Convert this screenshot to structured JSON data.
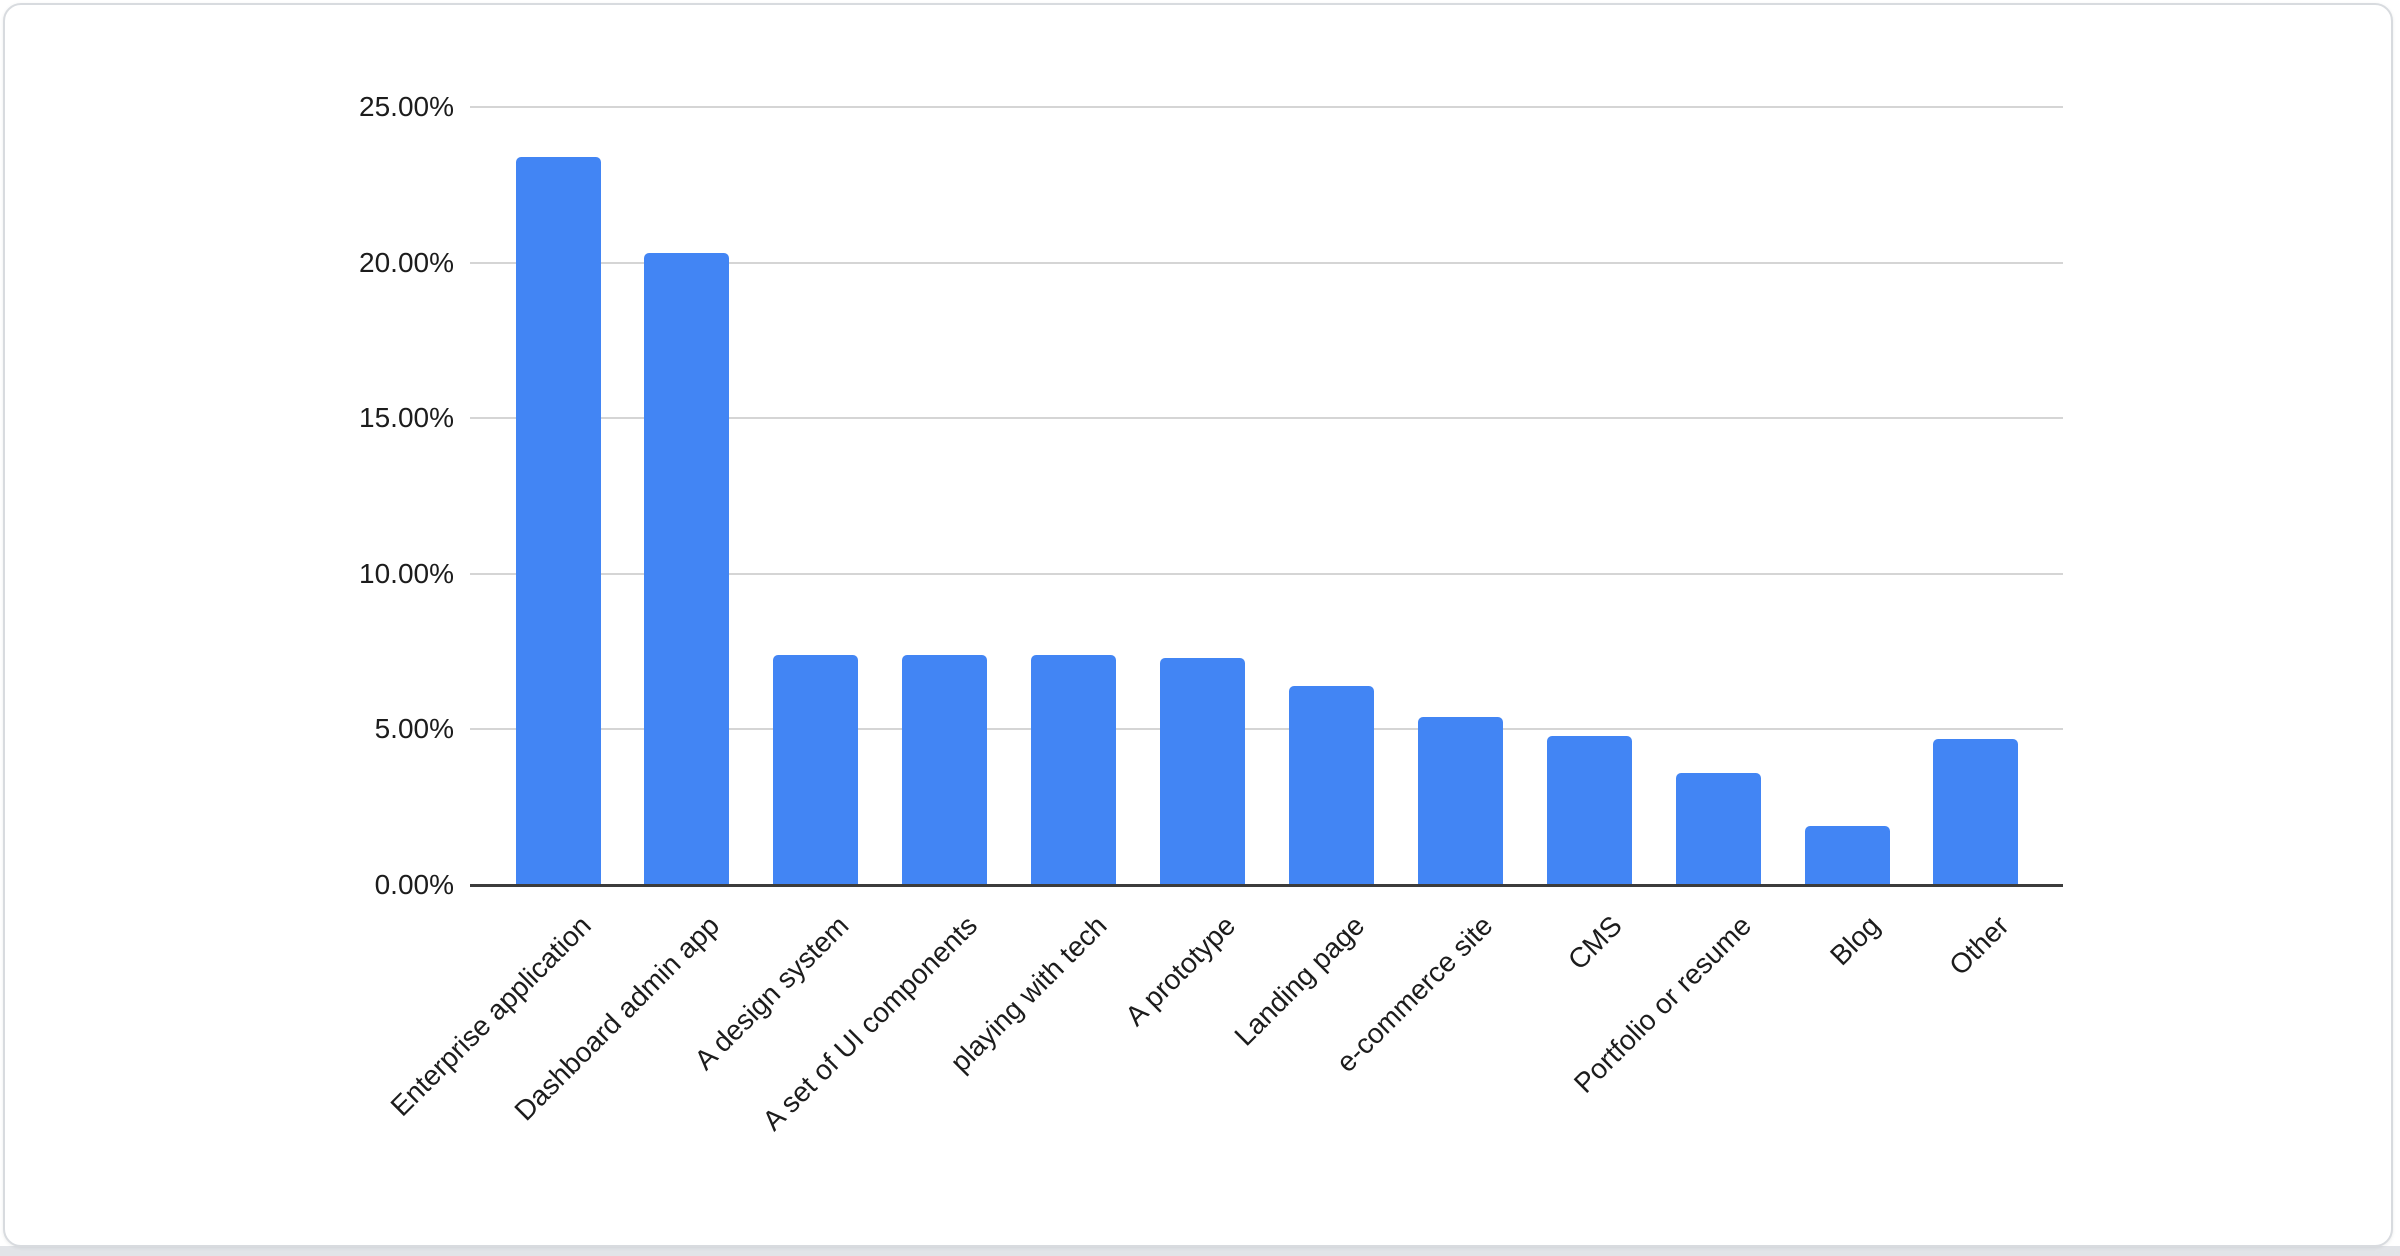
{
  "chart_data": {
    "type": "bar",
    "title": "",
    "xlabel": "",
    "ylabel": "",
    "categories": [
      "Enterprise application",
      "Dashboard admin app",
      "A design system",
      "A set of UI components",
      "playing with tech",
      "A prototype",
      "Landing page",
      "e-commerce site",
      "CMS",
      "Portfolio or resume",
      "Blog",
      "Other"
    ],
    "values": [
      23.4,
      20.3,
      7.4,
      7.4,
      7.4,
      7.3,
      6.4,
      5.4,
      4.8,
      3.6,
      1.9,
      4.7
    ],
    "value_unit": "%",
    "ylim": [
      0,
      25
    ],
    "yticks": [
      0,
      5,
      10,
      15,
      20,
      25
    ],
    "ytick_labels": [
      "0.00%",
      "5.00%",
      "10.00%",
      "15.00%",
      "20.00%",
      "25.00%"
    ],
    "grid": true,
    "legend": "none",
    "x_label_rotation_deg": -45,
    "colors": {
      "bar": "#4285f4",
      "gridline": "#d5d5d5",
      "axis_line": "#3c3c3c",
      "text": "#1c1c1c",
      "card_border": "#d8dbdf",
      "card_background": "#ffffff",
      "page_strip": "#e2e4e8"
    }
  }
}
